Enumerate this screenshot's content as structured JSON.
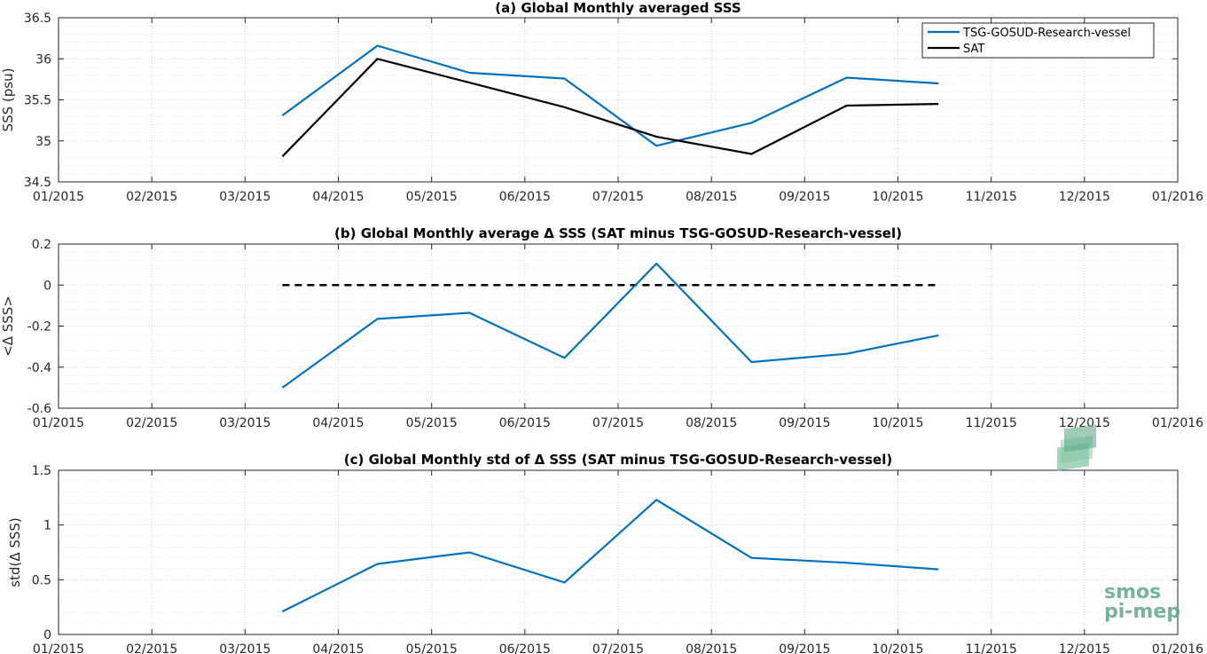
{
  "chart_data": [
    {
      "type": "line",
      "title": "(a) Global Monthly averaged SSS",
      "ylabel": "SSS (psu)",
      "xlabel": "",
      "x_tick_labels": [
        "01/2015",
        "02/2015",
        "03/2015",
        "04/2015",
        "05/2015",
        "06/2015",
        "07/2015",
        "08/2015",
        "09/2015",
        "10/2015",
        "11/2015",
        "12/2015",
        "01/2016"
      ],
      "y_ticks": [
        34.5,
        35,
        35.5,
        36,
        36.5
      ],
      "ylim": [
        34.5,
        36.5
      ],
      "grid": true,
      "legend_position": "top-right",
      "x_dates": [
        "2015-03-15",
        "2015-04-15",
        "2015-05-15",
        "2015-06-15",
        "2015-07-15",
        "2015-08-15",
        "2015-09-15",
        "2015-10-15"
      ],
      "series": [
        {
          "name": "TSG-GOSUD-Research-vessel",
          "color": "#0072bd",
          "values": [
            35.31,
            36.16,
            35.83,
            35.76,
            34.94,
            35.22,
            35.77,
            35.7
          ]
        },
        {
          "name": "SAT",
          "color": "#000000",
          "values": [
            34.81,
            36.0,
            35.71,
            35.41,
            35.05,
            34.84,
            35.43,
            35.45
          ]
        }
      ]
    },
    {
      "type": "line",
      "title": "(b) Global Monthly average Δ SSS (SAT minus TSG-GOSUD-Research-vessel)",
      "ylabel": "<Δ SSS>",
      "xlabel": "",
      "x_tick_labels": [
        "01/2015",
        "02/2015",
        "03/2015",
        "04/2015",
        "05/2015",
        "06/2015",
        "07/2015",
        "08/2015",
        "09/2015",
        "10/2015",
        "11/2015",
        "12/2015",
        "01/2016"
      ],
      "y_ticks": [
        -0.6,
        -0.4,
        -0.2,
        0,
        0.2
      ],
      "ylim": [
        -0.6,
        0.2
      ],
      "grid": true,
      "x_dates": [
        "2015-03-15",
        "2015-04-15",
        "2015-05-15",
        "2015-06-15",
        "2015-07-15",
        "2015-08-15",
        "2015-09-15",
        "2015-10-15"
      ],
      "series": [
        {
          "color": "#0072bd",
          "values": [
            -0.5,
            -0.165,
            -0.135,
            -0.355,
            0.105,
            -0.375,
            -0.335,
            -0.245
          ]
        }
      ],
      "reference_line": {
        "value": 0,
        "style": "dashed",
        "color": "#000000",
        "from": "2015-03-15",
        "to": "2015-10-15"
      }
    },
    {
      "type": "line",
      "title": "(c) Global Monthly std of Δ SSS (SAT minus TSG-GOSUD-Research-vessel)",
      "ylabel": "std(Δ SSS)",
      "xlabel": "",
      "x_tick_labels": [
        "01/2015",
        "02/2015",
        "03/2015",
        "04/2015",
        "05/2015",
        "06/2015",
        "07/2015",
        "08/2015",
        "09/2015",
        "10/2015",
        "11/2015",
        "12/2015",
        "01/2016"
      ],
      "y_ticks": [
        0,
        0.5,
        1,
        1.5
      ],
      "ylim": [
        0,
        1.5
      ],
      "grid": true,
      "x_dates": [
        "2015-03-15",
        "2015-04-15",
        "2015-05-15",
        "2015-06-15",
        "2015-07-15",
        "2015-08-15",
        "2015-09-15",
        "2015-10-15"
      ],
      "series": [
        {
          "color": "#0072bd",
          "values": [
            0.21,
            0.645,
            0.75,
            0.475,
            1.23,
            0.7,
            0.655,
            0.595
          ]
        }
      ]
    }
  ],
  "logo": {
    "line1": "smos",
    "line2": "pi-mep"
  }
}
